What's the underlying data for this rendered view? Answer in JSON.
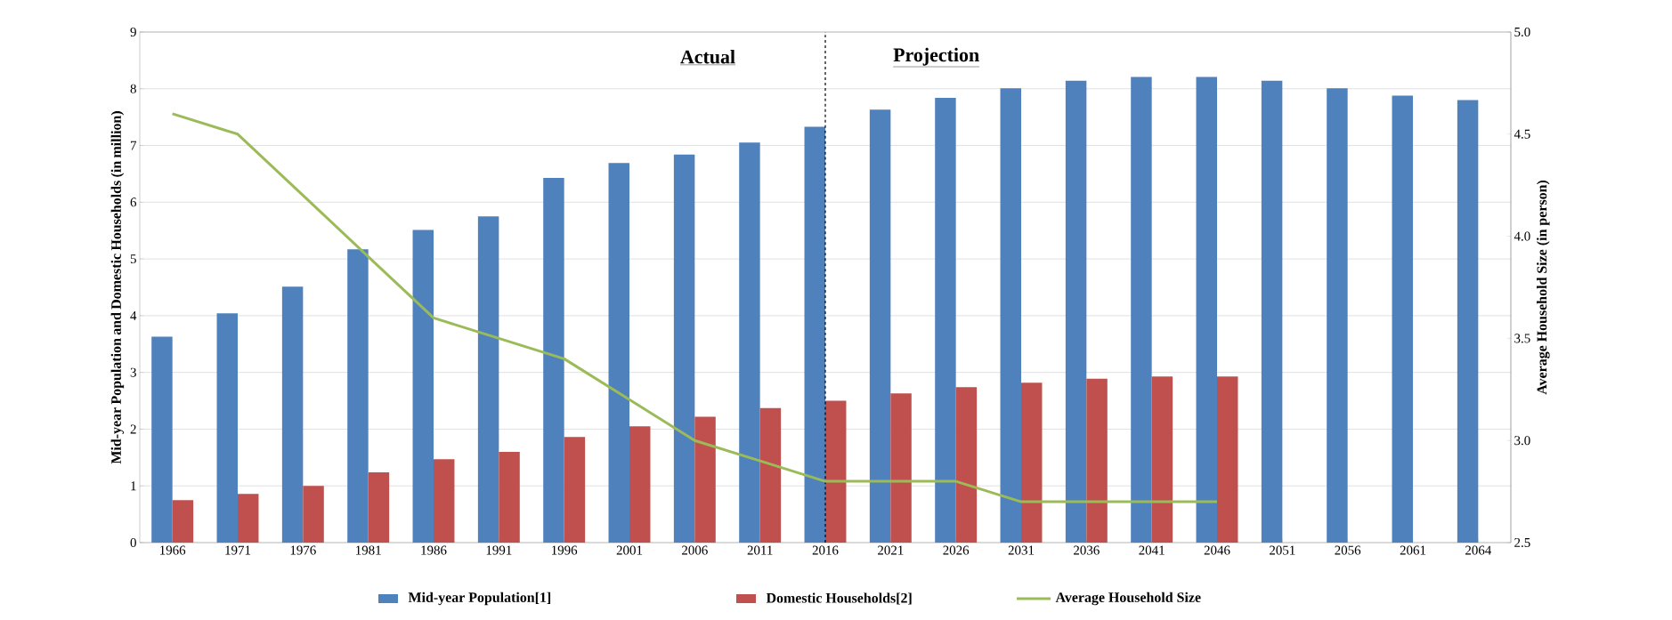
{
  "chart_data": {
    "type": "bar",
    "categories": [
      "1966",
      "1971",
      "1976",
      "1981",
      "1986",
      "1991",
      "1996",
      "2001",
      "2006",
      "2011",
      "2016",
      "2021",
      "2026",
      "2031",
      "2036",
      "2041",
      "2046",
      "2051",
      "2056",
      "2061",
      "2064"
    ],
    "series": [
      {
        "name": "Mid-year Population[1]",
        "color": "#4f81bd",
        "values": [
          3.63,
          4.04,
          4.51,
          5.17,
          5.51,
          5.75,
          6.43,
          6.69,
          6.84,
          7.05,
          7.33,
          7.63,
          7.84,
          8.01,
          8.14,
          8.21,
          8.21,
          8.14,
          8.01,
          7.88,
          7.8
        ]
      },
      {
        "name": "Domestic Households[2]",
        "color": "#c0504d",
        "values": [
          0.75,
          0.86,
          1.0,
          1.24,
          1.47,
          1.6,
          1.86,
          2.05,
          2.22,
          2.37,
          2.5,
          2.63,
          2.74,
          2.82,
          2.89,
          2.93,
          2.93,
          null,
          null,
          null,
          null
        ]
      },
      {
        "name": "Average Household Size",
        "type": "line",
        "axis": "y2",
        "color": "#9bbb59",
        "values": [
          4.6,
          4.5,
          4.2,
          3.9,
          3.6,
          3.5,
          3.4,
          3.2,
          3.0,
          2.9,
          2.8,
          2.8,
          2.8,
          2.7,
          2.7,
          2.7,
          2.7,
          null,
          null,
          null,
          null
        ]
      }
    ],
    "ylabel": "Mid-year Population and Domestic Households (in million)",
    "y2label": "Average Household Size (in person)",
    "ylim": [
      0,
      9
    ],
    "yticks": [
      0,
      1,
      2,
      3,
      4,
      5,
      6,
      7,
      8,
      9
    ],
    "y2lim": [
      2.5,
      5.0
    ],
    "y2ticks": [
      {
        "value": 2.5,
        "label": "2.5"
      },
      {
        "value": 3.0,
        "label": "3.0"
      },
      {
        "value": 3.5,
        "label": "3.5"
      },
      {
        "value": 4.0,
        "label": "4.0"
      },
      {
        "value": 4.5,
        "label": "4.5"
      },
      {
        "value": 5.0,
        "label": "5.0"
      }
    ],
    "ref_lines": [
      {
        "axis": "x",
        "value": "2016",
        "line_style": "dashed",
        "color": "#000000"
      }
    ],
    "annotations": [
      "Actual",
      "Projection"
    ],
    "grid": "y",
    "legend": "bottom",
    "marker": "none",
    "line_style": "solid"
  }
}
